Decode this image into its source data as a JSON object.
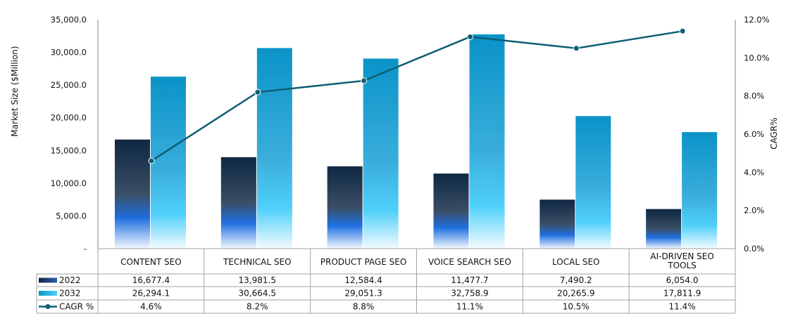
{
  "chart_data": {
    "type": "bar",
    "categories": [
      "CONTENT SEO",
      "TECHNICAL SEO",
      "PRODUCT PAGE SEO",
      "VOICE SEARCH SEO",
      "LOCAL SEO",
      "AI-DRIVEN SEO TOOLS"
    ],
    "category_lines": [
      [
        "CONTENT SEO"
      ],
      [
        "TECHNICAL SEO"
      ],
      [
        "PRODUCT PAGE SEO"
      ],
      [
        "VOICE SEARCH SEO"
      ],
      [
        "LOCAL SEO"
      ],
      [
        "AI-DRIVEN SEO",
        "TOOLS"
      ]
    ],
    "series": [
      {
        "name": "2022",
        "type": "bar",
        "axis": "left",
        "values": [
          16677.4,
          13981.5,
          12584.4,
          11477.7,
          7490.2,
          6054.0
        ],
        "labels": [
          "16,677.4",
          "13,981.5",
          "12,584.4",
          "11,477.7",
          "7,490.2",
          "6,054.0"
        ]
      },
      {
        "name": "2032",
        "type": "bar",
        "axis": "left",
        "values": [
          26294.1,
          30664.5,
          29051.3,
          32758.9,
          20265.9,
          17811.9
        ],
        "labels": [
          "26,294.1",
          "30,664.5",
          "29,051.3",
          "32,758.9",
          "20,265.9",
          "17,811.9"
        ]
      },
      {
        "name": "CAGR %",
        "type": "line",
        "axis": "right",
        "values": [
          4.6,
          8.2,
          8.8,
          11.1,
          10.5,
          11.4
        ],
        "labels": [
          "4.6%",
          "8.2%",
          "8.8%",
          "11.1%",
          "10.5%",
          "11.4%"
        ]
      }
    ],
    "y_left": {
      "label": "Market Size ($Million)",
      "min": 0,
      "max": 35000,
      "ticks": [
        0,
        5000,
        10000,
        15000,
        20000,
        25000,
        30000,
        35000
      ],
      "tick_labels": [
        "-",
        "5,000.0",
        "10,000.0",
        "15,000.0",
        "20,000.0",
        "25,000.0",
        "30,000.0",
        "35,000.0"
      ]
    },
    "y_right": {
      "label": "CAGR%",
      "min": 0,
      "max": 12,
      "ticks": [
        0,
        2,
        4,
        6,
        8,
        10,
        12
      ],
      "tick_labels": [
        "0.0%",
        "2.0%",
        "4.0%",
        "6.0%",
        "8.0%",
        "10.0%",
        "12.0%"
      ]
    },
    "grid": false,
    "legend": "data-table",
    "colors": {
      "bar2022_top": "#0f2742",
      "bar2022_mid": "#1f6fe0",
      "bar2032_top": "#0a93c8",
      "bar2032_mid": "#33c6f5",
      "line": "#0d5e75",
      "table_border": "#a0a0a0",
      "axis": "#7f7f7f"
    }
  }
}
